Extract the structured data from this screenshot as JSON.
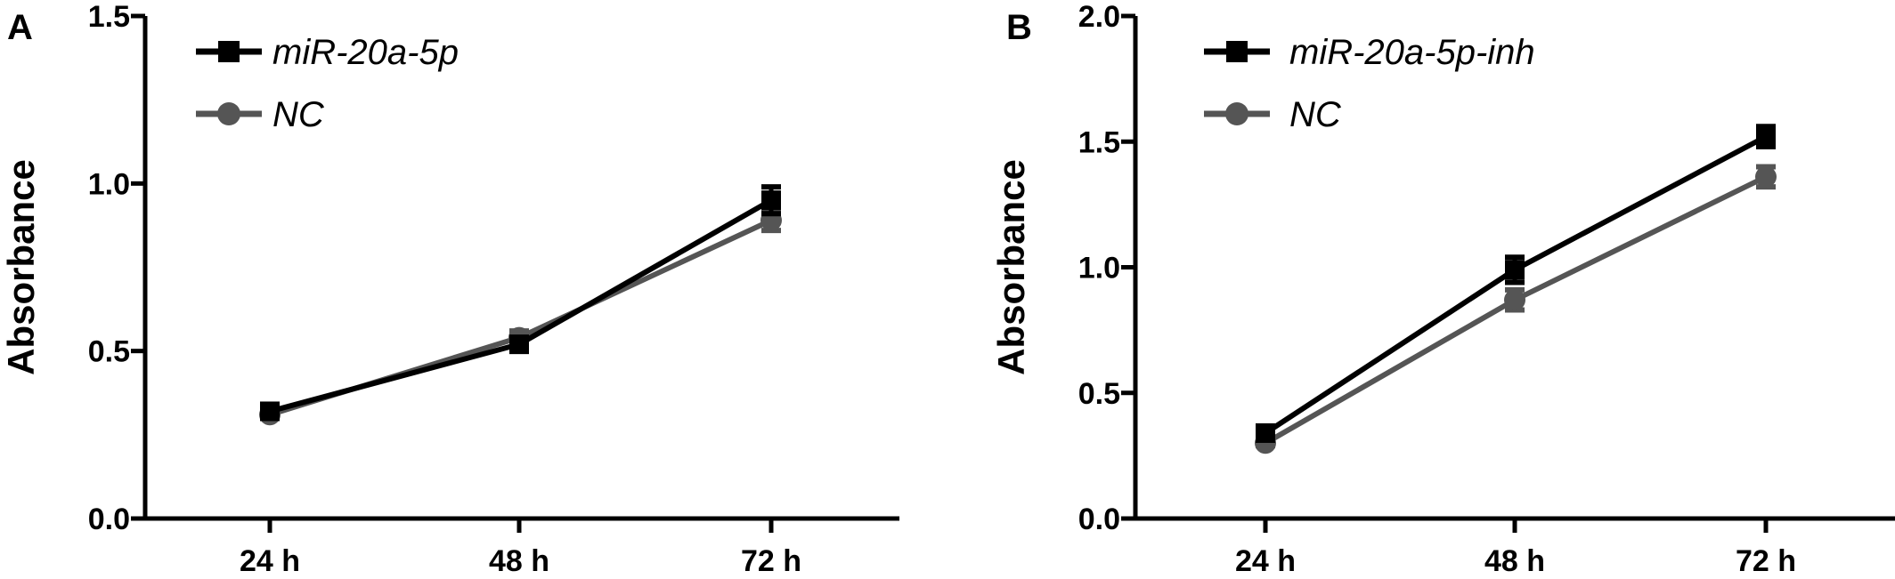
{
  "chart_data": [
    {
      "panel": "A",
      "type": "line",
      "title": "",
      "xlabel": "",
      "ylabel": "Absorbance",
      "categories": [
        "24 h",
        "48 h",
        "72 h"
      ],
      "ylim": [
        0,
        1.5
      ],
      "yticks": [
        "0.0",
        "0.5",
        "1.0",
        "1.5"
      ],
      "ytick_values": [
        0,
        0.5,
        1.0,
        1.5
      ],
      "grid": false,
      "legend_position": "top-left",
      "series": [
        {
          "name": "miR-20a-5p",
          "marker": "square",
          "color": "#000000",
          "values": [
            0.32,
            0.52,
            0.95
          ],
          "errors": [
            0.01,
            0.02,
            0.04
          ]
        },
        {
          "name": "NC",
          "marker": "circle",
          "color": "#555555",
          "values": [
            0.31,
            0.54,
            0.89
          ],
          "errors": [
            0.01,
            0.02,
            0.03
          ]
        }
      ]
    },
    {
      "panel": "B",
      "type": "line",
      "title": "",
      "xlabel": "",
      "ylabel": "Absorbance",
      "categories": [
        "24 h",
        "48 h",
        "72 h"
      ],
      "ylim": [
        0,
        2.0
      ],
      "yticks": [
        "0.0",
        "0.5",
        "1.0",
        "1.5",
        "2.0"
      ],
      "ytick_values": [
        0,
        0.5,
        1.0,
        1.5,
        2.0
      ],
      "grid": false,
      "legend_position": "top-left",
      "series": [
        {
          "name": "miR-20a-5p-inh",
          "marker": "square",
          "color": "#000000",
          "values": [
            0.34,
            0.99,
            1.52
          ],
          "errors": [
            0.01,
            0.05,
            0.04
          ]
        },
        {
          "name": "NC",
          "marker": "circle",
          "color": "#555555",
          "values": [
            0.3,
            0.87,
            1.36
          ],
          "errors": [
            0.01,
            0.04,
            0.04
          ]
        }
      ]
    }
  ]
}
